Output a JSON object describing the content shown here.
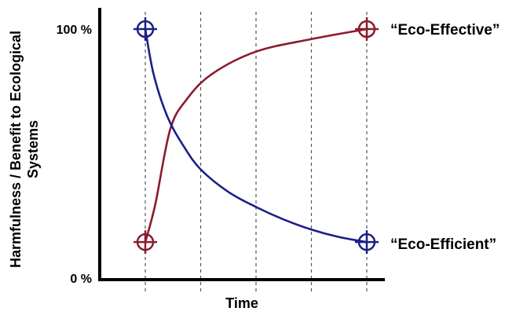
{
  "colors": {
    "eco_effective": "#8b1a2f",
    "eco_efficient": "#1c1f86",
    "axis": "#000000",
    "grid": "#555555"
  },
  "chart_data": {
    "type": "line",
    "xlabel": "Time",
    "ylabel": "Harmfulness / Benefit to Ecological Systems",
    "y_tick_labels": [
      "100 %",
      "0 %"
    ],
    "ylim": [
      0,
      100
    ],
    "xlim": [
      0,
      5
    ],
    "grid": "vertical dashed lines",
    "series": [
      {
        "name": "“Eco-Effective”",
        "color": "#8b1a2f",
        "marker": "circle-crosshair",
        "points": [
          [
            0,
            15
          ],
          [
            0.18,
            30
          ],
          [
            0.45,
            60
          ],
          [
            0.75,
            72
          ],
          [
            1.2,
            82
          ],
          [
            2,
            91
          ],
          [
            3,
            96
          ],
          [
            4,
            100
          ]
        ]
      },
      {
        "name": "“Eco-Efficient”",
        "color": "#1c1f86",
        "marker": "circle-crosshair",
        "points": [
          [
            0,
            100
          ],
          [
            0.15,
            82
          ],
          [
            0.4,
            65
          ],
          [
            0.7,
            53
          ],
          [
            1,
            44
          ],
          [
            1.5,
            35
          ],
          [
            2,
            29
          ],
          [
            2.5,
            24
          ],
          [
            3,
            20
          ],
          [
            3.5,
            17
          ],
          [
            4,
            15
          ]
        ]
      }
    ],
    "series_label_placement": "right of line end"
  }
}
